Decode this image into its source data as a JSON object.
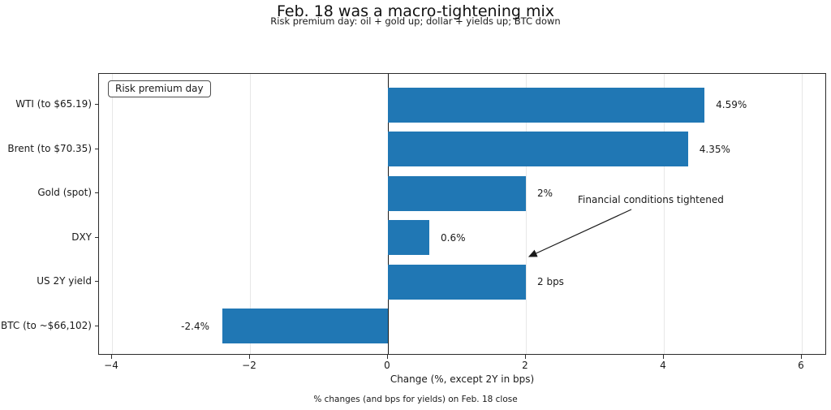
{
  "figure": {
    "title": "Feb. 18 was a macro-tightening mix",
    "subtitle": "Risk premium day: oil + gold up; dollar + yields up; BTC down",
    "footnote": "% changes (and bps for yields) on Feb. 18 close"
  },
  "legend": {
    "label": "Risk premium day"
  },
  "annotation": {
    "text": "Financial conditions tightened",
    "points_to": "US 2Y yield"
  },
  "colors": {
    "bar": "#2077b4",
    "grid": "#e7e7e7",
    "spine": "#2b2b2b",
    "zero_line": "#1a1a1a",
    "text": "#1a1a1a"
  },
  "chart_data": {
    "type": "bar",
    "orientation": "horizontal",
    "title": "Feb. 18 was a macro-tightening mix",
    "subtitle": "Risk premium day: oil + gold up; dollar + yields up; BTC down",
    "xlabel": "Change (%, except 2Y in bps)",
    "ylabel": "",
    "xlim": [
      -4.2,
      6.37
    ],
    "x_ticks": [
      -4,
      -2,
      0,
      2,
      4,
      6
    ],
    "grid": "vertical",
    "zero_line": true,
    "legend_position": "upper-left",
    "categories": [
      "WTI (to $65.19)",
      "Brent (to $70.35)",
      "Gold (spot)",
      "DXY",
      "US 2Y yield",
      "BTC (to ~$66,102)"
    ],
    "values": [
      4.59,
      4.35,
      2,
      0.6,
      2,
      -2.4
    ],
    "value_labels": [
      "4.59%",
      "4.35%",
      "2%",
      "0.6%",
      "2 bps",
      "-2.4%"
    ],
    "footnote": "% changes (and bps for yields) on Feb. 18 close"
  }
}
